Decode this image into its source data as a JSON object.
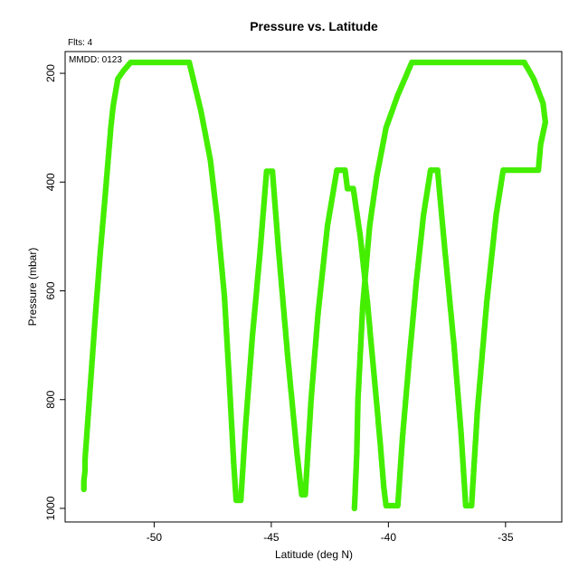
{
  "chart_data": {
    "type": "scatter",
    "title": "Pressure vs. Latitude",
    "subtitle": "Flts: 4",
    "annotation": "MMDD: 0123",
    "xlabel": "Latitude (deg N)",
    "ylabel": "Pressure (mbar)",
    "xlim": [
      -53.8,
      -32.6
    ],
    "ylim": [
      1025,
      160
    ],
    "x_ticks": [
      -50,
      -45,
      -40,
      -35
    ],
    "y_ticks": [
      200,
      400,
      600,
      800,
      1000
    ],
    "point_color": "#44ee00",
    "series": [
      {
        "points": [
          [
            -53.0,
            965
          ],
          [
            -53.0,
            950
          ],
          [
            -52.95,
            930
          ],
          [
            -52.95,
            910
          ],
          [
            -52.9,
            880
          ],
          [
            -52.7,
            760
          ],
          [
            -52.5,
            640
          ],
          [
            -52.3,
            530
          ],
          [
            -52.1,
            430
          ],
          [
            -51.85,
            300
          ],
          [
            -51.75,
            260
          ],
          [
            -51.55,
            210
          ],
          [
            -51.3,
            195
          ],
          [
            -51.0,
            180
          ],
          [
            -50.0,
            180
          ],
          [
            -49.0,
            180
          ],
          [
            -48.5,
            180
          ],
          [
            -48.0,
            270
          ],
          [
            -47.6,
            360
          ],
          [
            -47.3,
            470
          ],
          [
            -47.0,
            610
          ],
          [
            -46.8,
            760
          ],
          [
            -46.6,
            920
          ],
          [
            -46.5,
            985
          ],
          [
            -46.3,
            985
          ],
          [
            -46.1,
            850
          ],
          [
            -45.8,
            680
          ],
          [
            -45.5,
            540
          ],
          [
            -45.2,
            380
          ],
          [
            -44.95,
            380
          ],
          [
            -44.7,
            520
          ],
          [
            -44.3,
            720
          ],
          [
            -43.9,
            900
          ],
          [
            -43.7,
            975
          ],
          [
            -43.55,
            975
          ],
          [
            -43.3,
            800
          ],
          [
            -43.0,
            640
          ],
          [
            -42.6,
            480
          ],
          [
            -42.2,
            378
          ],
          [
            -41.85,
            378
          ],
          [
            -41.75,
            412
          ],
          [
            -41.5,
            412
          ],
          [
            -41.2,
            500
          ],
          [
            -40.9,
            620
          ],
          [
            -40.6,
            760
          ],
          [
            -40.35,
            880
          ],
          [
            -40.2,
            960
          ],
          [
            -40.1,
            995
          ],
          [
            -39.6,
            995
          ],
          [
            -39.4,
            870
          ],
          [
            -39.1,
            720
          ],
          [
            -38.8,
            580
          ],
          [
            -38.5,
            460
          ],
          [
            -38.2,
            378
          ],
          [
            -37.9,
            378
          ],
          [
            -37.6,
            520
          ],
          [
            -37.2,
            700
          ],
          [
            -36.9,
            860
          ],
          [
            -36.7,
            995
          ],
          [
            -36.45,
            995
          ],
          [
            -36.2,
            820
          ],
          [
            -35.8,
            620
          ],
          [
            -35.4,
            460
          ],
          [
            -35.1,
            378
          ],
          [
            -34.5,
            378
          ],
          [
            -33.6,
            378
          ],
          [
            -33.5,
            330
          ],
          [
            -33.3,
            290
          ],
          [
            -33.4,
            255
          ],
          [
            -33.8,
            210
          ],
          [
            -34.2,
            180
          ],
          [
            -35.0,
            180
          ],
          [
            -37.0,
            180
          ],
          [
            -39.0,
            180
          ],
          [
            -39.6,
            240
          ],
          [
            -40.1,
            300
          ],
          [
            -40.5,
            390
          ],
          [
            -40.8,
            480
          ],
          [
            -41.1,
            630
          ],
          [
            -41.3,
            800
          ],
          [
            -41.35,
            900
          ],
          [
            -41.4,
            950
          ],
          [
            -41.45,
            1000
          ]
        ]
      }
    ]
  }
}
